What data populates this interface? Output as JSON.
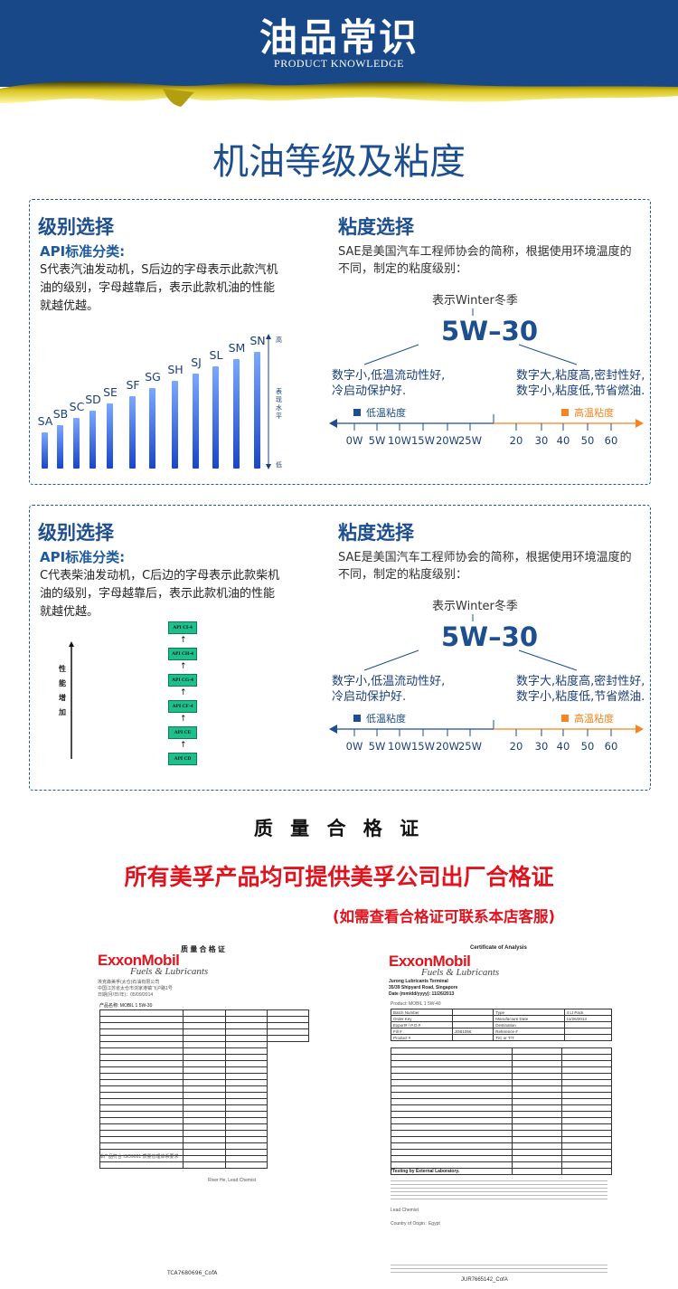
{
  "header": {
    "title": "油品常识",
    "subtitle": "PRODUCT KNOWLEDGE"
  },
  "main_title": "机油等级及粘度",
  "panels": [
    {
      "grade_title": "级别选择",
      "api_label": "API标准分类:",
      "desc": [
        "S代表汽油发动机，S后边的字母表示此款汽机",
        "油的级别，字母越靠后，表示此款机油的性能",
        "就越优越。"
      ],
      "grades": [
        "SA",
        "SB",
        "SC",
        "SD",
        "SE",
        "SF",
        "SG",
        "SH",
        "SJ",
        "SL",
        "SM",
        "SN"
      ],
      "axis_high": "高",
      "axis_mid": "表现水平",
      "axis_low": "低"
    },
    {
      "grade_title": "级别选择",
      "api_label": "API标准分类:",
      "desc": [
        "C代表柴油发动机，C后边的字母表示此款柴机",
        "油的级别，字母越靠后，表示此款机油的性能",
        "就越优越。"
      ],
      "grades": [
        "API CI-4",
        "API CH-4",
        "API CG-4",
        "API CF-4",
        "API CE",
        "API CD"
      ],
      "axis_label": [
        "性",
        "能",
        "增",
        "加"
      ]
    }
  ],
  "viscosity": {
    "title": "粘度选择",
    "desc": [
      "SAE是美国汽车工程师协会的简称，根据使用环境温度的",
      "不同，制定的粘度级别："
    ],
    "winter_note": "表示Winter冬季",
    "grade": "5W–30",
    "left_note": [
      "数字小,低温流动性好,",
      "冷启动保护好."
    ],
    "right_note": [
      "数字大,粘度高,密封性好,",
      "数字小,粘度低,节省燃油."
    ],
    "low_legend": "低温粘度",
    "high_legend": "高温粘度",
    "low_ticks": [
      "0W",
      "5W",
      "10W",
      "15W",
      "20W",
      "25W"
    ],
    "high_ticks": [
      "20",
      "30",
      "40",
      "50",
      "60"
    ],
    "colors": {
      "low": "#1d4e8f",
      "high": "#f7841e"
    }
  },
  "certificate": {
    "heading": "质 量 合 格 证",
    "statement": "所有美孚产品均可提供美孚公司出厂合格证",
    "note": "(如需查看合格证可联系本店客服)"
  },
  "cert_cn": {
    "title": "质 量 合 格 证",
    "brand": "ExxonMobil",
    "sub": "Fuels & Lubricants",
    "company": "埃克森美孚(太仓)石油有限公司",
    "address": "中国江苏省太仓市浏家港镇飞沪路1号",
    "date": "日期(月/日/年)：05/09/2014",
    "product": "产品名称: MOBIL 1 5W-30",
    "iso": "ISO9001",
    "signer": "River He, Lead Chemist",
    "code": "TCA7680696_CofA"
  },
  "cert_en": {
    "title": "Certificate of Analysis",
    "brand": "ExxonMobil",
    "sub": "Fuels & Lubricants",
    "terminal": "Jurong Lubricants Terminal",
    "address": "35/39 Shipyard Road, Singapore",
    "date": "Date (mm/dd/yyyy): 11/26/2013",
    "product": "Product: MOBIL 1 5W-40",
    "pack": "4 Lt Pack",
    "mfg": "11/26/2013",
    "fill": "JOB1056",
    "testing": "*Testing by External Laboratory.",
    "chemist": "Lead Chemist",
    "origin": "Country of Origin : Egypt",
    "code": "JUR7665142_CofA"
  }
}
